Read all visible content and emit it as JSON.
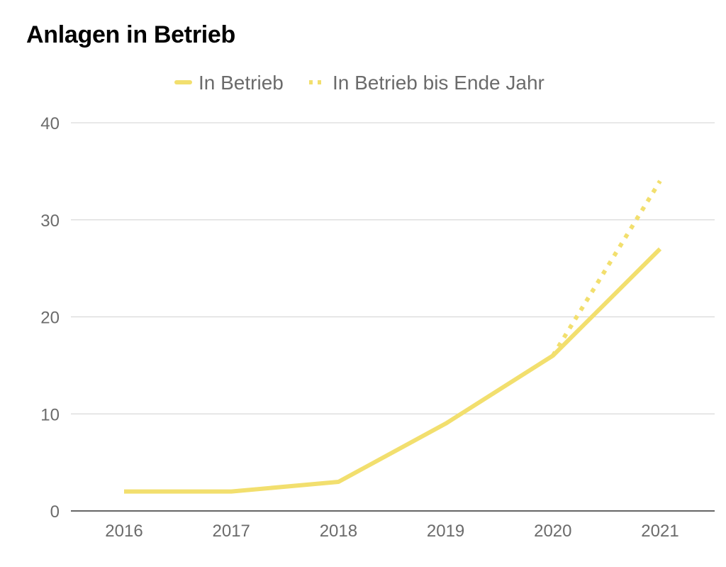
{
  "chart_data": {
    "type": "line",
    "title": "Anlagen in Betrieb",
    "xlabel": "",
    "ylabel": "",
    "categories": [
      "2016",
      "2017",
      "2018",
      "2019",
      "2020",
      "2021"
    ],
    "yticks": [
      "0",
      "10",
      "20",
      "30",
      "40"
    ],
    "ylim": [
      0,
      40
    ],
    "grid": true,
    "legend_position": "top",
    "series": [
      {
        "name": "In Betrieb",
        "style": "solid",
        "color": "#f2df6e",
        "values": [
          2,
          2,
          3,
          9,
          16,
          27
        ]
      },
      {
        "name": "In Betrieb bis Ende Jahr",
        "style": "dotted",
        "color": "#f2df6e",
        "values": [
          null,
          null,
          null,
          null,
          16,
          34
        ]
      }
    ]
  }
}
